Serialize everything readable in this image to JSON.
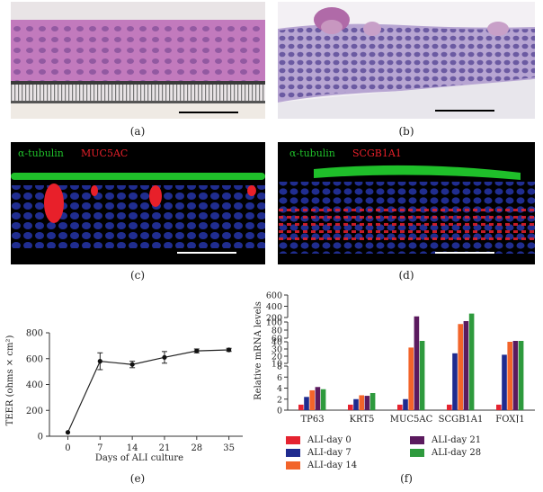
{
  "panels": {
    "a": {
      "label": "(a)"
    },
    "b": {
      "label": "(b)"
    },
    "c": {
      "label": "(c)",
      "stain_green": "α-tubulin",
      "stain_red": "MUC5AC"
    },
    "d": {
      "label": "(d)",
      "stain_green": "α-tubulin",
      "stain_red": "SCGB1A1"
    },
    "e": {
      "label": "(e)"
    },
    "f": {
      "label": "(f)"
    }
  },
  "colors": {
    "he_pink": "#c98fc4",
    "he_purple": "#6b3d8a",
    "fluor_green": "#1fbf2a",
    "fluor_red": "#e8202a",
    "fluor_blue": "#2a3cc0"
  },
  "chart_data": [
    {
      "type": "line",
      "xlabel": "Days of ALI culture",
      "ylabel": "TEER (ohms × cm²)",
      "x": [
        0,
        7,
        14,
        21,
        28,
        35
      ],
      "y": [
        30,
        580,
        555,
        610,
        660,
        668
      ],
      "err": [
        0,
        65,
        25,
        45,
        15,
        12
      ],
      "xlim": [
        -4,
        38
      ],
      "ylim": [
        0,
        800
      ],
      "yticks": [
        0,
        200,
        400,
        600,
        800
      ],
      "xticks": [
        0,
        7,
        14,
        21,
        28,
        35
      ]
    },
    {
      "type": "bar",
      "ylabel": "Relative mRNA levels",
      "categories": [
        "TP63",
        "KRT5",
        "MUC5AC",
        "SCGB1A1",
        "FOXJ1"
      ],
      "series": [
        {
          "name": "ALI-day 0",
          "color": "#e52330",
          "values": [
            1,
            1,
            1,
            1,
            1
          ]
        },
        {
          "name": "ALI-day 7",
          "color": "#1f2b8f",
          "values": [
            2.4,
            2.0,
            2.0,
            24,
            22
          ]
        },
        {
          "name": "ALI-day 14",
          "color": "#f2642a",
          "values": [
            3.6,
            2.7,
            32,
            95,
            40
          ]
        },
        {
          "name": "ALI-day 21",
          "color": "#5b1a5e",
          "values": [
            4.2,
            2.6,
            220,
            190,
            47
          ]
        },
        {
          "name": "ALI-day 28",
          "color": "#2e9a3d",
          "values": [
            3.8,
            3.1,
            42,
            270,
            45
          ]
        }
      ],
      "y_breaks": "broken axis: 0–8, 10–40, 60–100, 200–600",
      "yticks": [
        0,
        2,
        4,
        6,
        8,
        10,
        20,
        30,
        40,
        60,
        80,
        100,
        200,
        400,
        600
      ]
    }
  ],
  "legend_f": [
    {
      "name": "ALI-day 0",
      "color": "#e52330"
    },
    {
      "name": "ALI-day 7",
      "color": "#1f2b8f"
    },
    {
      "name": "ALI-day 14",
      "color": "#f2642a"
    },
    {
      "name": "ALI-day 21",
      "color": "#5b1a5e"
    },
    {
      "name": "ALI-day 28",
      "color": "#2e9a3d"
    }
  ]
}
